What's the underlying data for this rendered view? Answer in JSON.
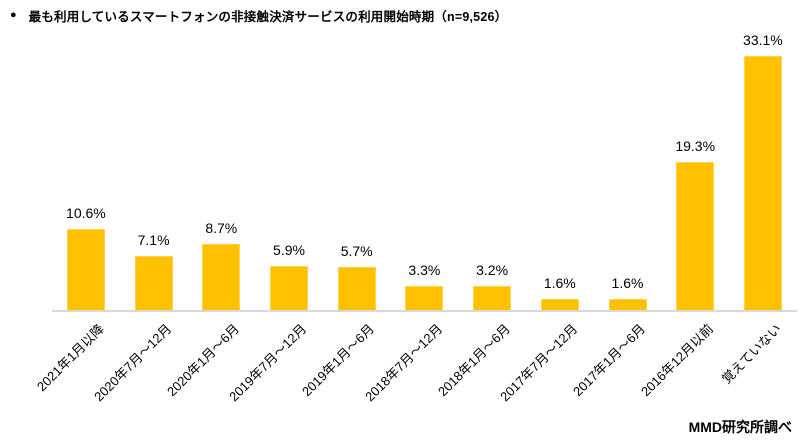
{
  "title": {
    "bullet": "●",
    "text": "最も利用しているスマートフォンの非接触決済サービスの利用開始時期（n=9,526）"
  },
  "source": "MMD研究所調べ",
  "colors": {
    "bar_fill": "#FFC000",
    "bar_border": "#FFD34D",
    "axis_line": "#D9D9D9",
    "text": "#000000"
  },
  "chart_data": {
    "type": "bar",
    "title": "最も利用しているスマートフォンの非接触決済サービスの利用開始時期（n=9,526）",
    "n": "9,526",
    "categories": [
      "2021年1月以降",
      "2020年7月～12月",
      "2020年1月～6月",
      "2019年7月～12月",
      "2019年1月～6月",
      "2018年7月～12月",
      "2018年1月～6月",
      "2017年7月～12月",
      "2017年1月～6月",
      "2016年12月以前",
      "覚えていない"
    ],
    "values": [
      10.6,
      7.1,
      8.7,
      5.9,
      5.7,
      3.3,
      3.2,
      1.6,
      1.6,
      19.3,
      33.1
    ],
    "value_labels": [
      "10.6%",
      "7.1%",
      "8.7%",
      "5.9%",
      "5.7%",
      "3.3%",
      "3.2%",
      "1.6%",
      "1.6%",
      "19.3%",
      "33.1%"
    ],
    "unit": "%",
    "xlabel": "",
    "ylabel": "",
    "ylim": [
      0,
      35
    ],
    "grid": false,
    "legend": false,
    "bar_color": "#FFC000",
    "x_tick_rotation_deg": 45
  }
}
